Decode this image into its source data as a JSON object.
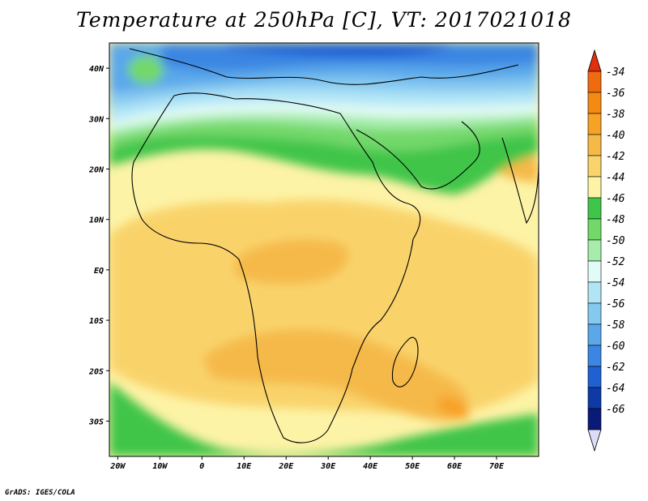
{
  "title": "Temperature at 250hPa [C], VT: 2017021018",
  "credit": "GrADS: IGES/COLA",
  "map": {
    "lon_range": [
      -22,
      80
    ],
    "lat_range": [
      -37,
      45
    ],
    "x_ticks": [
      {
        "lon": -20,
        "label": "20W"
      },
      {
        "lon": -10,
        "label": "10W"
      },
      {
        "lon": 0,
        "label": "0"
      },
      {
        "lon": 10,
        "label": "10E"
      },
      {
        "lon": 20,
        "label": "20E"
      },
      {
        "lon": 30,
        "label": "30E"
      },
      {
        "lon": 40,
        "label": "40E"
      },
      {
        "lon": 50,
        "label": "50E"
      },
      {
        "lon": 60,
        "label": "60E"
      },
      {
        "lon": 70,
        "label": "70E"
      }
    ],
    "y_ticks": [
      {
        "lat": 40,
        "label": "40N"
      },
      {
        "lat": 30,
        "label": "30N"
      },
      {
        "lat": 20,
        "label": "20N"
      },
      {
        "lat": 10,
        "label": "10N"
      },
      {
        "lat": 0,
        "label": "EQ"
      },
      {
        "lat": -10,
        "label": "10S"
      },
      {
        "lat": -20,
        "label": "20S"
      },
      {
        "lat": -30,
        "label": "30S"
      }
    ]
  },
  "colorbar": {
    "levels": [
      {
        "label": "-34",
        "color": "#f06a10"
      },
      {
        "label": "-36",
        "color": "#f58a12"
      },
      {
        "label": "-38",
        "color": "#f8a225"
      },
      {
        "label": "-40",
        "color": "#f5b948"
      },
      {
        "label": "-42",
        "color": "#f9d36b"
      },
      {
        "label": "-44",
        "color": "#fdf3a6"
      },
      {
        "label": "-46",
        "color": "#3fc54a"
      },
      {
        "label": "-48",
        "color": "#73d86a"
      },
      {
        "label": "-50",
        "color": "#a6ecaa"
      },
      {
        "label": "-52",
        "color": "#e3fbf6"
      },
      {
        "label": "-54",
        "color": "#b1e5f6"
      },
      {
        "label": "-56",
        "color": "#85c8f0"
      },
      {
        "label": "-58",
        "color": "#5aa7ea"
      },
      {
        "label": "-60",
        "color": "#3b86e2"
      },
      {
        "label": "-62",
        "color": "#1f61d3"
      },
      {
        "label": "-64",
        "color": "#0e3aa8"
      },
      {
        "label": "-66",
        "color": "#0c1a77"
      }
    ],
    "top_arrow_color": "#e03010",
    "bottom_arrow_color": "#dcdcf6"
  }
}
